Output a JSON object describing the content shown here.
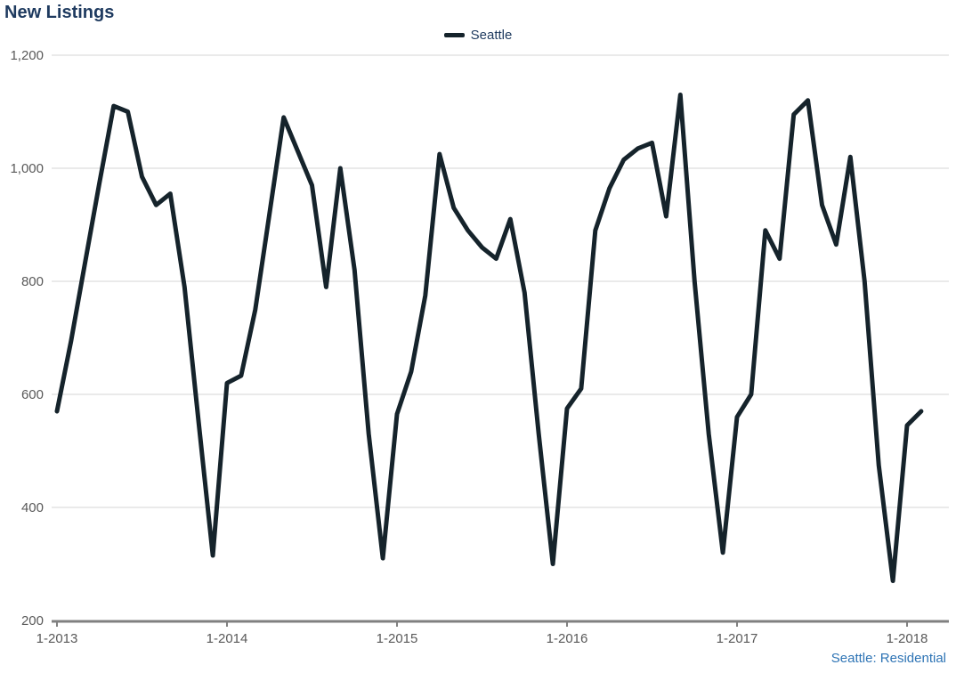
{
  "title": "New Listings",
  "legend": {
    "label": "Seattle"
  },
  "footer": {
    "source": "Seattle: Residential"
  },
  "style": {
    "title_color": "#1E3A5F",
    "legend_text_color": "#1E3A5F",
    "line_color": "#15232B",
    "source_color": "#2E74B5",
    "axis_color": "#808080",
    "grid_color": "#D6D6D6",
    "tick_label_color": "#595959"
  },
  "chart_data": {
    "type": "line",
    "title": "New Listings",
    "xlabel": "",
    "ylabel": "",
    "ylim": [
      200,
      1200
    ],
    "grid": "horizontal",
    "legend_position": "top-center",
    "y_tick_labels": [
      "1,200",
      "1,000",
      "800",
      "600",
      "400",
      "200"
    ],
    "y_tick_values": [
      1200,
      1000,
      800,
      600,
      400,
      200
    ],
    "x_tick_labels": [
      "1-2013",
      "1-2014",
      "1-2015",
      "1-2016",
      "1-2017",
      "1-2018"
    ],
    "x_tick_month_indices": [
      0,
      12,
      24,
      36,
      48,
      60
    ],
    "months": [
      "Jan 2013",
      "Feb 2013",
      "Mar 2013",
      "Apr 2013",
      "May 2013",
      "Jun 2013",
      "Jul 2013",
      "Aug 2013",
      "Sep 2013",
      "Oct 2013",
      "Nov 2013",
      "Dec 2013",
      "Jan 2014",
      "Feb 2014",
      "Mar 2014",
      "Apr 2014",
      "May 2014",
      "Jun 2014",
      "Jul 2014",
      "Aug 2014",
      "Sep 2014",
      "Oct 2014",
      "Nov 2014",
      "Dec 2014",
      "Jan 2015",
      "Feb 2015",
      "Mar 2015",
      "Apr 2015",
      "May 2015",
      "Jun 2015",
      "Jul 2015",
      "Aug 2015",
      "Sep 2015",
      "Oct 2015",
      "Nov 2015",
      "Dec 2015",
      "Jan 2016",
      "Feb 2016",
      "Mar 2016",
      "Apr 2016",
      "May 2016",
      "Jun 2016",
      "Jul 2016",
      "Aug 2016",
      "Sep 2016",
      "Oct 2016",
      "Nov 2016",
      "Dec 2016",
      "Jan 2017",
      "Feb 2017",
      "Mar 2017",
      "Apr 2017",
      "May 2017",
      "Jun 2017",
      "Jul 2017",
      "Aug 2017",
      "Sep 2017",
      "Oct 2017",
      "Nov 2017",
      "Dec 2017",
      "Jan 2018",
      "Feb 2018"
    ],
    "series": [
      {
        "name": "Seattle",
        "values": [
          570,
          695,
          835,
          975,
          1110,
          1100,
          985,
          935,
          955,
          790,
          550,
          315,
          620,
          633,
          750,
          920,
          1090,
          1030,
          970,
          790,
          1000,
          820,
          530,
          310,
          565,
          640,
          775,
          1025,
          930,
          890,
          860,
          840,
          910,
          780,
          530,
          300,
          575,
          610,
          890,
          965,
          1015,
          1035,
          1045,
          915,
          1130,
          800,
          530,
          320,
          560,
          600,
          890,
          840,
          1095,
          1120,
          935,
          865,
          1020,
          800,
          475,
          270,
          545,
          570
        ]
      }
    ]
  }
}
